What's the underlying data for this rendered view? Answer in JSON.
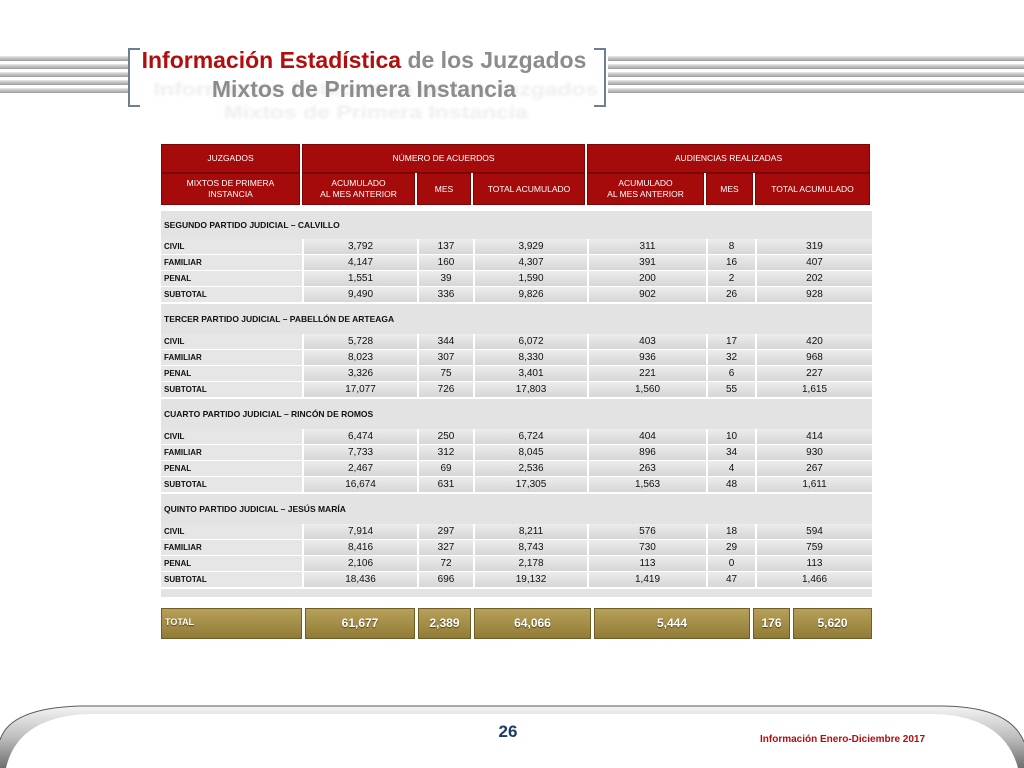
{
  "header": {
    "title_highlight": "Información Estadística",
    "title_rest": " de los Juzgados",
    "title_line2": "Mixtos de Primera Instancia"
  },
  "table": {
    "head1": {
      "c1": "JUZGADOS",
      "c2": "NÚMERO DE ACUERDOS",
      "c3": "AUDIENCIAS  REALIZADAS"
    },
    "head2": {
      "c1a": "MIXTOS DE PRIMERA",
      "c1b": "INSTANCIA",
      "c2a": "ACUMULADO",
      "c2b": "AL  MES ANTERIOR",
      "c3": "MES",
      "c4": "TOTAL ACUMULADO",
      "c5a": "ACUMULADO",
      "c5b": "AL  MES ANTERIOR",
      "c6": "MES",
      "c7": "TOTAL ACUMULADO"
    },
    "sections": [
      {
        "title": "SEGUNDO PARTIDO JUDICIAL – CALVILLO",
        "rows": [
          {
            "label": "CIVIL",
            "v": [
              "3,792",
              "137",
              "3,929",
              "311",
              "8",
              "319"
            ]
          },
          {
            "label": "FAMILIAR",
            "v": [
              "4,147",
              "160",
              "4,307",
              "391",
              "16",
              "407"
            ]
          },
          {
            "label": "PENAL",
            "v": [
              "1,551",
              "39",
              "1,590",
              "200",
              "2",
              "202"
            ]
          },
          {
            "label": "SUBTOTAL",
            "v": [
              "9,490",
              "336",
              "9,826",
              "902",
              "26",
              "928"
            ]
          }
        ]
      },
      {
        "title": "TERCER  PARTIDO JUDICIAL – PABELLÓN DE  ARTEAGA",
        "rows": [
          {
            "label": "CIVIL",
            "v": [
              "5,728",
              "344",
              "6,072",
              "403",
              "17",
              "420"
            ]
          },
          {
            "label": "FAMILIAR",
            "v": [
              "8,023",
              "307",
              "8,330",
              "936",
              "32",
              "968"
            ]
          },
          {
            "label": "PENAL",
            "v": [
              "3,326",
              "75",
              "3,401",
              "221",
              "6",
              "227"
            ]
          },
          {
            "label": "SUBTOTAL",
            "v": [
              "17,077",
              "726",
              "17,803",
              "1,560",
              "55",
              "1,615"
            ]
          }
        ]
      },
      {
        "title": "CUARTO  PARTIDO JUDICIAL – RINCÓN  DE  ROMOS",
        "rows": [
          {
            "label": "CIVIL",
            "v": [
              "6,474",
              "250",
              "6,724",
              "404",
              "10",
              "414"
            ]
          },
          {
            "label": "FAMILIAR",
            "v": [
              "7,733",
              "312",
              "8,045",
              "896",
              "34",
              "930"
            ]
          },
          {
            "label": "PENAL",
            "v": [
              "2,467",
              "69",
              "2,536",
              "263",
              "4",
              "267"
            ]
          },
          {
            "label": "SUBTOTAL",
            "v": [
              "16,674",
              "631",
              "17,305",
              "1,563",
              "48",
              "1,611"
            ]
          }
        ]
      },
      {
        "title": "QUINTO PARTIDO JUDICIAL – JESÚS MARÍA",
        "rows": [
          {
            "label": "CIVIL",
            "v": [
              "7,914",
              "297",
              "8,211",
              "576",
              "18",
              "594"
            ]
          },
          {
            "label": "FAMILIAR",
            "v": [
              "8,416",
              "327",
              "8,743",
              "730",
              "29",
              "759"
            ]
          },
          {
            "label": "PENAL",
            "v": [
              "2,106",
              "72",
              "2,178",
              "113",
              "0",
              "113"
            ]
          },
          {
            "label": "SUBTOTAL",
            "v": [
              "18,436",
              "696",
              "19,132",
              "1,419",
              "47",
              "1,466"
            ]
          }
        ]
      }
    ],
    "total": {
      "label": "TOTAL",
      "v": [
        "61,677",
        "2,389",
        "64,066",
        "5,444",
        "176",
        "5,620"
      ]
    }
  },
  "footer": {
    "page_number": "26",
    "text": "Información Enero-Diciembre 2017"
  },
  "colors": {
    "header_red": "#a50b0b",
    "title_red": "#b30d0d",
    "total_gold": "#a38c46",
    "page_number_blue": "#1f3a68"
  }
}
